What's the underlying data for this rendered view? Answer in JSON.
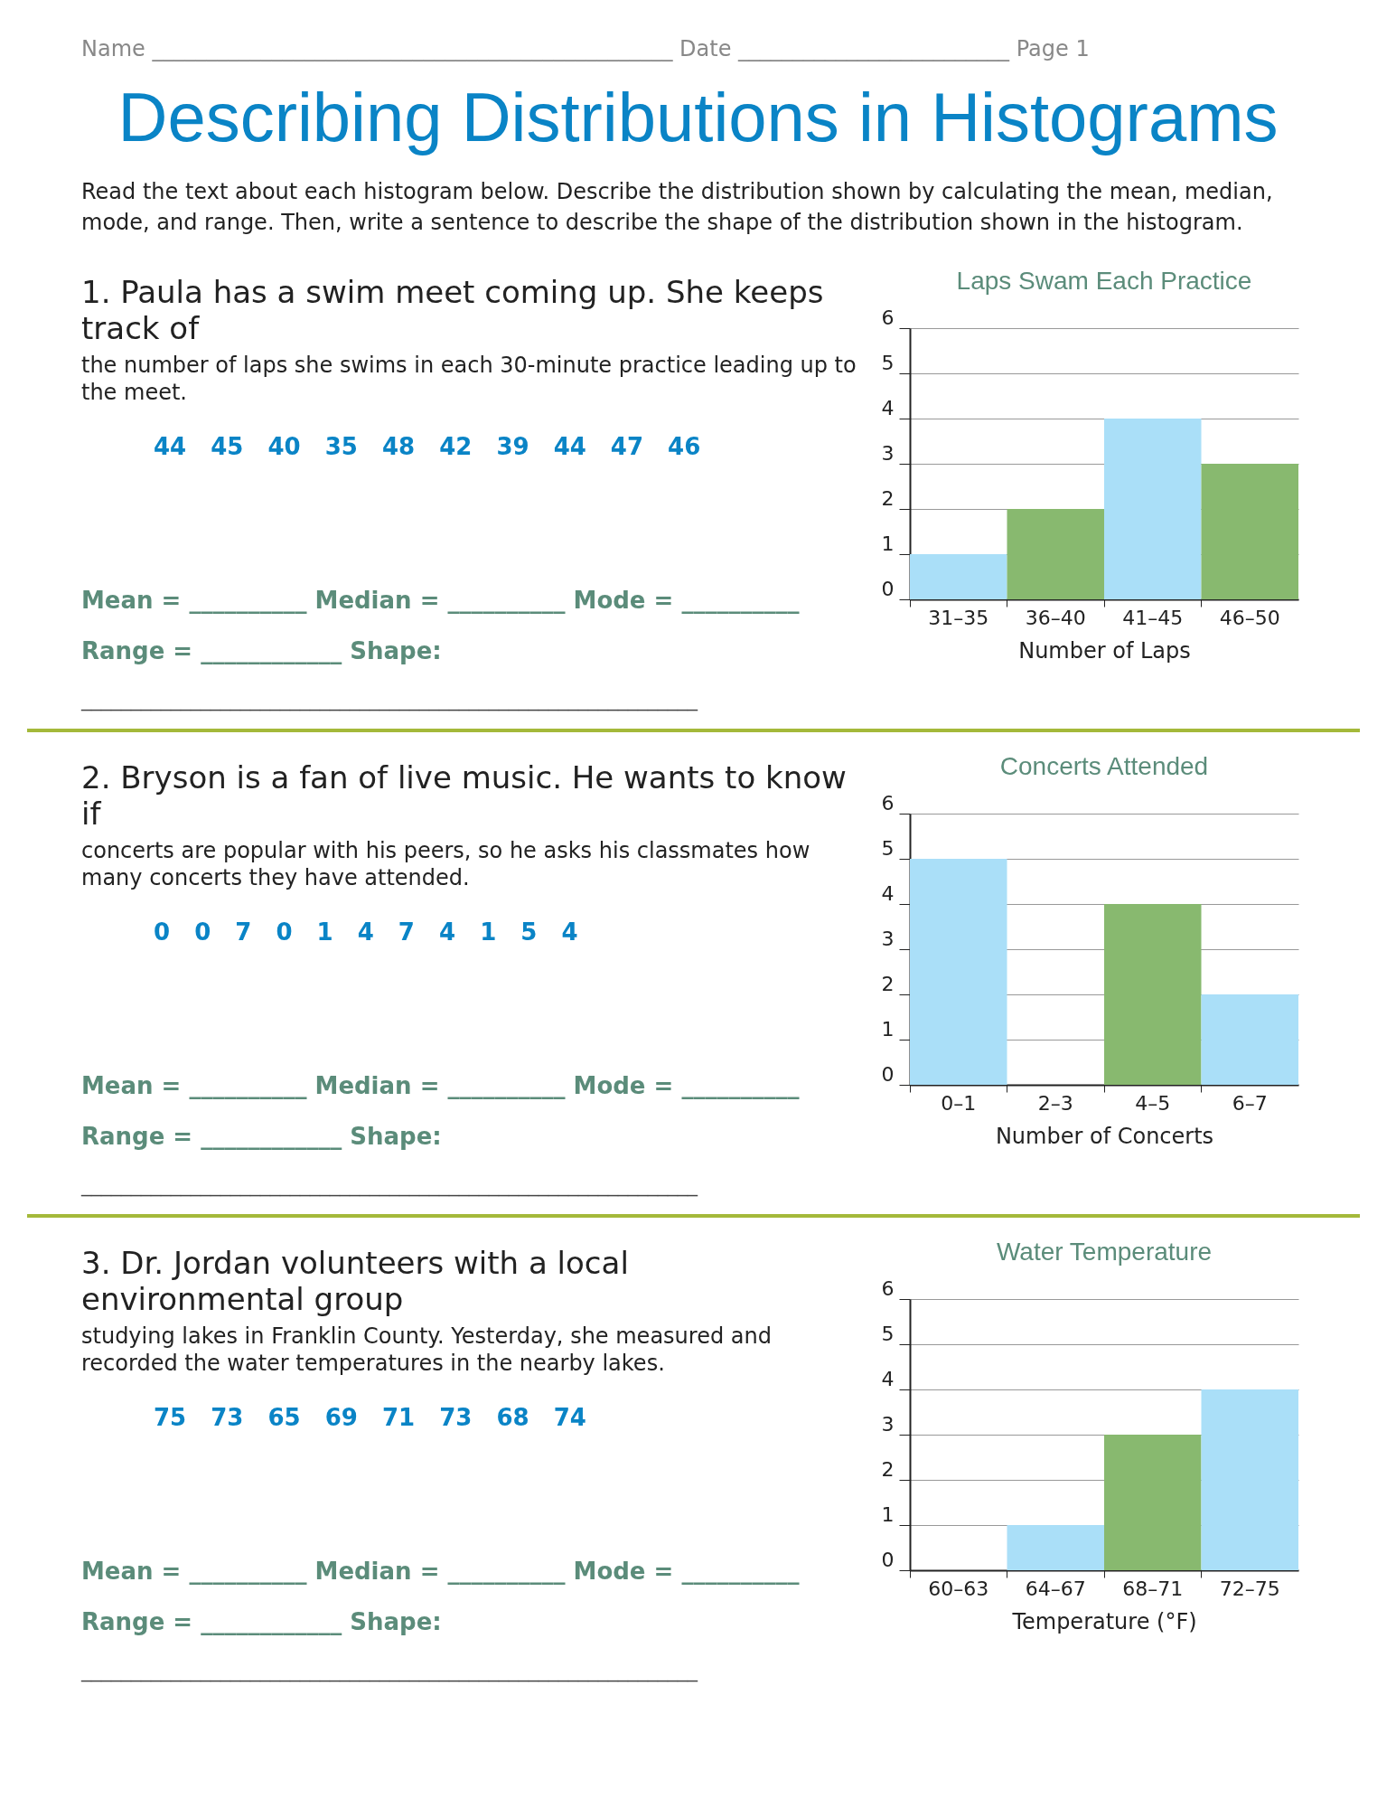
{
  "chart_data": [
    {
      "type": "bar",
      "title": "Laps Swam Each Practice",
      "xlabel": "Number of Laps",
      "categories": [
        "31–35",
        "36–40",
        "41–45",
        "46–50"
      ],
      "values": [
        1,
        2,
        4,
        3
      ],
      "colors": [
        "#aadff8",
        "#88b96f",
        "#aadff8",
        "#88b96f"
      ],
      "ylim": [
        0,
        6
      ],
      "yticks": [
        0,
        1,
        2,
        3,
        4,
        5,
        6
      ],
      "grid": "y",
      "annotations": [
        "Name ________________________________________________ Date _________________________ Page 1",
        "Describing Distributions in Histograms",
        "Read the text about each histogram below. Describe the distribution shown by calculating the mean, median, mode, and range. Then, write a sentence to describe the shape of the distribution shown in the histogram.",
        "1. Paula has a swim meet coming up. She keeps track of",
        "the number of laps she swims in each 30-minute practice leading up to the meet.",
        "44 45 40 35 48 42 39 44 47 46",
        "Mean = __________ Median = __________ Mode = __________",
        "Range = ____________ Shape:",
        "______________________________________________________________"
      ]
    },
    {
      "type": "bar",
      "title": "Concerts Attended",
      "xlabel": "Number of Concerts",
      "categories": [
        "0–1",
        "2–3",
        "4–5",
        "6–7"
      ],
      "values": [
        5,
        0,
        4,
        2
      ],
      "colors": [
        "#aadff8",
        "#aadff8",
        "#88b96f",
        "#aadff8"
      ],
      "ylim": [
        0,
        6
      ],
      "yticks": [
        0,
        1,
        2,
        3,
        4,
        5,
        6
      ],
      "grid": "y",
      "annotations": [
        "2. Bryson is a fan of live music. He wants to know if",
        "concerts are popular with his peers, so he asks his classmates how many concerts they have attended.",
        "0 0 7 0 1 4 7 4 1 5 4",
        "Mean = __________ Median = __________ Mode = __________",
        "Range = ____________ Shape:",
        "______________________________________________________________"
      ]
    },
    {
      "type": "bar",
      "title": "Water Temperature",
      "xlabel": "Temperature (°F)",
      "categories": [
        "60–63",
        "64–67",
        "68–71",
        "72–75"
      ],
      "values": [
        0,
        1,
        3,
        4
      ],
      "colors": [
        "#aadff8",
        "#aadff8",
        "#88b96f",
        "#aadff8"
      ],
      "ylim": [
        0,
        6
      ],
      "yticks": [
        0,
        1,
        2,
        3,
        4,
        5,
        6
      ],
      "grid": "y",
      "annotations": [
        "3. Dr. Jordan volunteers with a local environmental group",
        "studying lakes in Franklin County. Yesterday, she measured and recorded the water temperatures in the nearby lakes.",
        "75 73 65 69 71 73 68 74",
        "Mean = __________ Median = __________ Mode = __________",
        "Range = ____________ Shape:",
        "______________________________________________________________"
      ]
    }
  ]
}
